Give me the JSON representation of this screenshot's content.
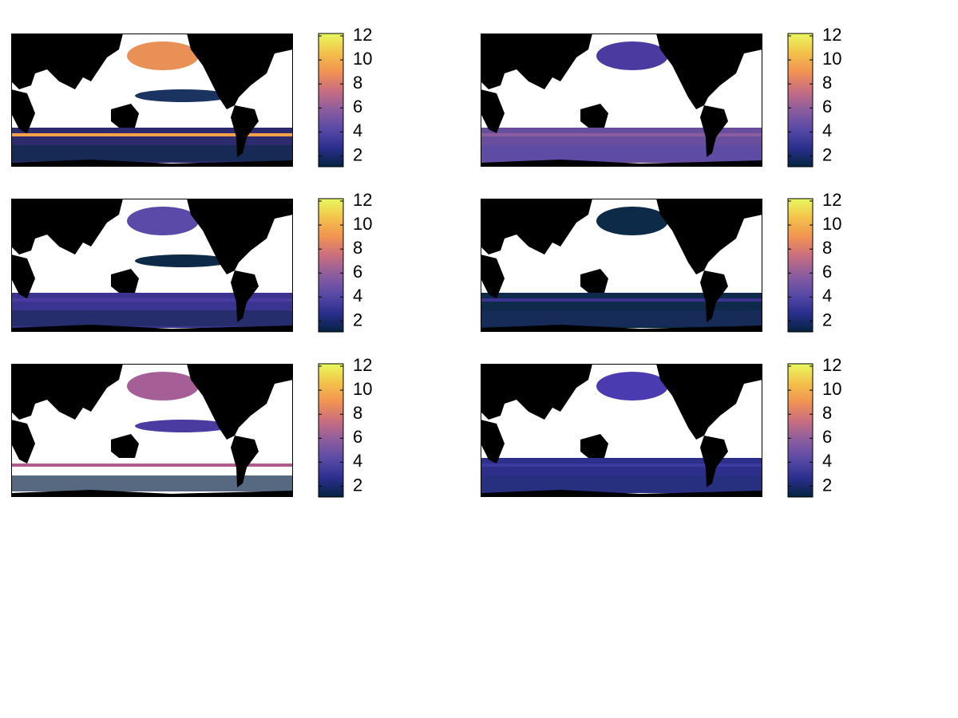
{
  "chart_data": [
    {
      "type": "heatmap",
      "ylim": [
        1.1,
        12.2
      ],
      "yticks": [
        2,
        4,
        6,
        8,
        10,
        12
      ],
      "colormap": [
        "#04233f",
        "#2b2f8e",
        "#5a4aa6",
        "#8c5d9e",
        "#c96e80",
        "#f29352",
        "#f3c24a",
        "#e8f95f"
      ]
    },
    {
      "type": "heatmap",
      "ylim": [
        1.1,
        12.2
      ],
      "yticks": [
        2,
        4,
        6,
        8,
        10,
        12
      ],
      "colormap": [
        "#04233f",
        "#2b2f8e",
        "#5a4aa6",
        "#8c5d9e",
        "#c96e80",
        "#f29352",
        "#f3c24a",
        "#e8f95f"
      ]
    },
    {
      "type": "heatmap",
      "ylim": [
        1.1,
        12.2
      ],
      "yticks": [
        2,
        4,
        6,
        8,
        10,
        12
      ],
      "colormap": [
        "#04233f",
        "#2b2f8e",
        "#5a4aa6",
        "#8c5d9e",
        "#c96e80",
        "#f29352",
        "#f3c24a",
        "#e8f95f"
      ]
    },
    {
      "type": "heatmap",
      "ylim": [
        1.1,
        12.2
      ],
      "yticks": [
        2,
        4,
        6,
        8,
        10,
        12
      ],
      "colormap": [
        "#04233f",
        "#2b2f8e",
        "#5a4aa6",
        "#8c5d9e",
        "#c96e80",
        "#f29352",
        "#f3c24a",
        "#e8f95f"
      ]
    },
    {
      "type": "heatmap",
      "ylim": [
        1.1,
        12.2
      ],
      "yticks": [
        2,
        4,
        6,
        8,
        10,
        12
      ],
      "colormap": [
        "#04233f",
        "#2b2f8e",
        "#5a4aa6",
        "#8c5d9e",
        "#c96e80",
        "#f29352",
        "#f3c24a",
        "#e8f95f"
      ]
    },
    {
      "type": "heatmap",
      "ylim": [
        1.1,
        12.2
      ],
      "yticks": [
        2,
        4,
        6,
        8,
        10,
        12
      ],
      "colormap": [
        "#04233f",
        "#2b2f8e",
        "#5a4aa6",
        "#8c5d9e",
        "#c96e80",
        "#f29352",
        "#f3c24a",
        "#e8f95f"
      ]
    }
  ]
}
